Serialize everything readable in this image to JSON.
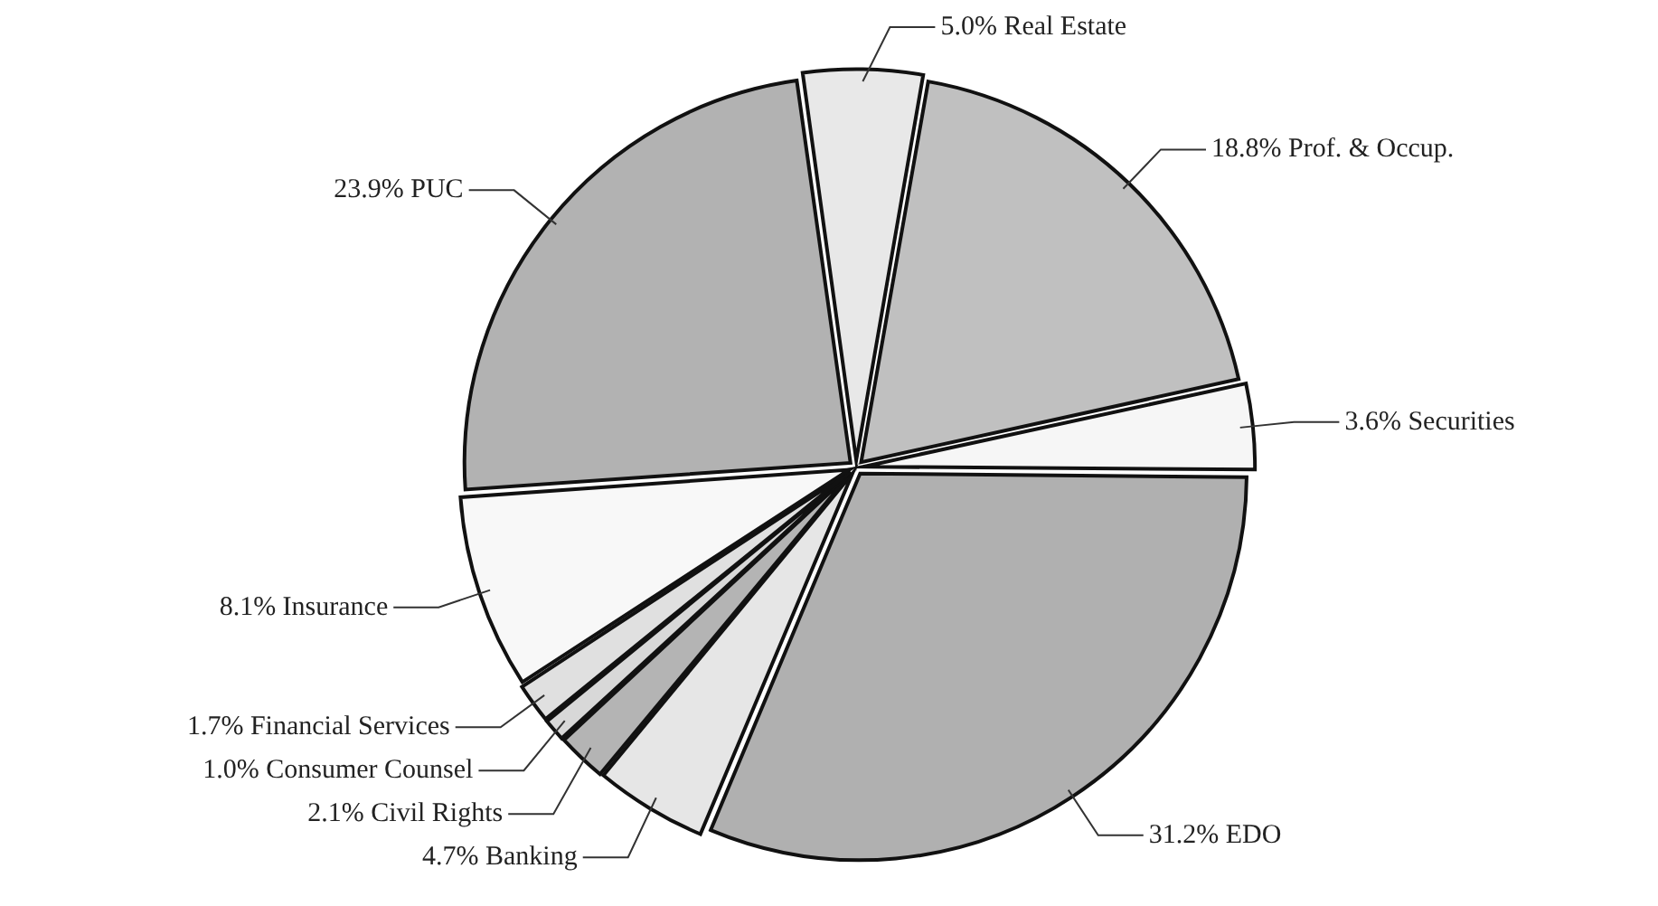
{
  "chart_data": {
    "type": "pie",
    "categories": [
      "Real Estate",
      "Prof. & Occup.",
      "Securities",
      "EDO",
      "Banking",
      "Civil Rights",
      "Consumer Counsel",
      "Financial Services",
      "Insurance",
      "PUC"
    ],
    "values": [
      5.0,
      18.8,
      3.6,
      31.2,
      4.7,
      2.1,
      1.0,
      1.7,
      8.1,
      23.9
    ],
    "value_labels": [
      "5.0%",
      "18.8%",
      "3.6%",
      "31.2%",
      "4.7%",
      "2.1%",
      "1.0%",
      "1.7%",
      "8.1%",
      "23.9%"
    ],
    "colors": [
      "#e8e8e8",
      "#c0c0c0",
      "#f6f6f6",
      "#b0b0b0",
      "#e6e6e6",
      "#b4b4b4",
      "#d8d8d8",
      "#e0e0e0",
      "#f8f8f8",
      "#b2b2b2"
    ],
    "legend": false
  }
}
